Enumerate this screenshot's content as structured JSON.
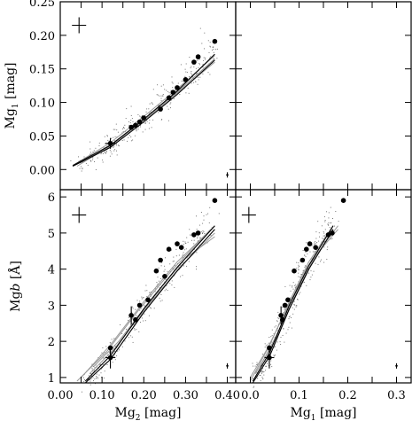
{
  "chart_data": [
    {
      "type": "scatter",
      "panel": "top-left",
      "xlabel": "",
      "ylabel": "Mg1 [mag]",
      "ylabel_main": "Mg",
      "ylabel_sub": "1",
      "ylabel_unit": " [mag]",
      "xlim": [
        0.0,
        0.42
      ],
      "ylim": [
        -0.03,
        0.25
      ],
      "yticks": [
        0.0,
        0.05,
        0.1,
        0.15,
        0.2,
        0.25
      ],
      "ytick_labels": [
        "0.00",
        "0.05",
        "0.10",
        "0.15",
        "0.20",
        "0.25"
      ],
      "xticks": [
        0.0,
        0.05,
        0.1,
        0.15,
        0.2,
        0.25,
        0.3,
        0.35,
        0.4
      ],
      "cross_marker": {
        "x": 0.045,
        "y": 0.215
      },
      "small_error": {
        "x": 0.4,
        "y": -0.008
      },
      "points": [
        {
          "x": 0.12,
          "y": 0.039,
          "ex": 0.012,
          "ey": 0.008
        },
        {
          "x": 0.17,
          "y": 0.063
        },
        {
          "x": 0.18,
          "y": 0.066
        },
        {
          "x": 0.19,
          "y": 0.071
        },
        {
          "x": 0.2,
          "y": 0.077
        },
        {
          "x": 0.24,
          "y": 0.09
        },
        {
          "x": 0.26,
          "y": 0.107
        },
        {
          "x": 0.27,
          "y": 0.115
        },
        {
          "x": 0.28,
          "y": 0.122
        },
        {
          "x": 0.3,
          "y": 0.134
        },
        {
          "x": 0.32,
          "y": 0.16
        },
        {
          "x": 0.33,
          "y": 0.168
        },
        {
          "x": 0.37,
          "y": 0.191
        }
      ],
      "models_black": [
        [
          [
            0.03,
            0.006
          ],
          [
            0.12,
            0.036
          ],
          [
            0.2,
            0.075
          ],
          [
            0.28,
            0.117
          ],
          [
            0.37,
            0.172
          ]
        ],
        [
          [
            0.03,
            0.005
          ],
          [
            0.12,
            0.033
          ],
          [
            0.2,
            0.071
          ],
          [
            0.28,
            0.112
          ],
          [
            0.37,
            0.163
          ]
        ]
      ],
      "models_grey": [
        [
          [
            0.03,
            0.006
          ],
          [
            0.12,
            0.04
          ],
          [
            0.2,
            0.079
          ],
          [
            0.28,
            0.12
          ],
          [
            0.37,
            0.17
          ]
        ],
        [
          [
            0.05,
            0.01
          ],
          [
            0.13,
            0.041
          ],
          [
            0.21,
            0.078
          ],
          [
            0.29,
            0.121
          ],
          [
            0.37,
            0.165
          ]
        ],
        [
          [
            0.04,
            0.005
          ],
          [
            0.12,
            0.035
          ],
          [
            0.2,
            0.073
          ],
          [
            0.28,
            0.114
          ],
          [
            0.37,
            0.16
          ]
        ],
        [
          [
            0.06,
            0.013
          ],
          [
            0.14,
            0.045
          ],
          [
            0.22,
            0.084
          ],
          [
            0.3,
            0.126
          ],
          [
            0.37,
            0.165
          ]
        ]
      ]
    },
    {
      "type": "scatter",
      "panel": "bottom-left",
      "xlabel": "Mg2 [mag]",
      "xlabel_main": "Mg",
      "xlabel_sub": "2",
      "xlabel_unit": " [mag]",
      "ylabel": "Mgb [Å]",
      "ylabel_main": "Mg",
      "ylabel_italic": "b",
      "ylabel_unit": " [Å]",
      "xlim": [
        0.0,
        0.42
      ],
      "ylim": [
        0.85,
        6.2
      ],
      "xticks": [
        0.0,
        0.05,
        0.1,
        0.15,
        0.2,
        0.25,
        0.3,
        0.35,
        0.4
      ],
      "xtick_labels": [
        "0.00",
        "0.10",
        "0.20",
        "0.30",
        "0.40"
      ],
      "xtick_label_values": [
        0.0,
        0.1,
        0.2,
        0.3,
        0.4
      ],
      "yticks": [
        1,
        2,
        3,
        4,
        5,
        6
      ],
      "ytick_labels": [
        "1",
        "2",
        "3",
        "4",
        "5",
        "6"
      ],
      "cross_marker": {
        "x": 0.045,
        "y": 5.5
      },
      "small_error": {
        "x": 0.4,
        "y": 1.32
      },
      "points": [
        {
          "x": 0.12,
          "y": 1.55,
          "ex": 0.012,
          "ey": 0.3
        },
        {
          "x": 0.12,
          "y": 1.82
        },
        {
          "x": 0.17,
          "y": 2.72,
          "ey": 0.25
        },
        {
          "x": 0.18,
          "y": 2.6
        },
        {
          "x": 0.19,
          "y": 3.0
        },
        {
          "x": 0.21,
          "y": 3.15
        },
        {
          "x": 0.23,
          "y": 3.95
        },
        {
          "x": 0.24,
          "y": 4.25
        },
        {
          "x": 0.25,
          "y": 3.8
        },
        {
          "x": 0.26,
          "y": 4.55
        },
        {
          "x": 0.28,
          "y": 4.7
        },
        {
          "x": 0.29,
          "y": 4.6
        },
        {
          "x": 0.32,
          "y": 4.95
        },
        {
          "x": 0.33,
          "y": 5.0
        },
        {
          "x": 0.37,
          "y": 5.9
        }
      ],
      "models_black": [
        [
          [
            0.06,
            0.9
          ],
          [
            0.12,
            1.6
          ],
          [
            0.2,
            2.9
          ],
          [
            0.28,
            4.05
          ],
          [
            0.37,
            5.2
          ]
        ],
        [
          [
            0.06,
            0.85
          ],
          [
            0.12,
            1.5
          ],
          [
            0.2,
            2.8
          ],
          [
            0.28,
            3.95
          ],
          [
            0.37,
            5.1
          ]
        ]
      ],
      "models_grey": [
        [
          [
            0.05,
            1.0
          ],
          [
            0.12,
            1.9
          ],
          [
            0.2,
            3.1
          ],
          [
            0.28,
            4.2
          ],
          [
            0.37,
            5.2
          ]
        ],
        [
          [
            0.07,
            1.1
          ],
          [
            0.13,
            1.8
          ],
          [
            0.21,
            3.0
          ],
          [
            0.29,
            4.1
          ],
          [
            0.37,
            5.0
          ]
        ],
        [
          [
            0.04,
            0.9
          ],
          [
            0.11,
            1.7
          ],
          [
            0.19,
            2.9
          ],
          [
            0.27,
            4.0
          ],
          [
            0.36,
            5.1
          ]
        ],
        [
          [
            0.08,
            1.3
          ],
          [
            0.14,
            2.0
          ],
          [
            0.22,
            3.2
          ],
          [
            0.3,
            4.3
          ],
          [
            0.37,
            4.9
          ]
        ]
      ]
    },
    {
      "type": "scatter",
      "panel": "bottom-right",
      "xlabel": "Mg1 [mag]",
      "xlabel_main": "Mg",
      "xlabel_sub": "1",
      "xlabel_unit": " [mag]",
      "ylabel": "",
      "xlim": [
        -0.03,
        0.33
      ],
      "ylim": [
        0.85,
        6.2
      ],
      "xticks": [
        0.0,
        0.05,
        0.1,
        0.15,
        0.2,
        0.25,
        0.3
      ],
      "xtick_labels": [
        "0.0",
        "0.1",
        "0.2",
        "0.3"
      ],
      "xtick_label_values": [
        0.0,
        0.1,
        0.2,
        0.3
      ],
      "yticks": [
        1,
        2,
        3,
        4,
        5,
        6
      ],
      "cross_marker": {
        "x": -0.003,
        "y": 5.5
      },
      "small_error": {
        "x": 0.3,
        "y": 1.32
      },
      "points": [
        {
          "x": 0.039,
          "y": 1.55,
          "ex": 0.01,
          "ey": 0.3
        },
        {
          "x": 0.039,
          "y": 1.82
        },
        {
          "x": 0.063,
          "y": 2.72,
          "ey": 0.25
        },
        {
          "x": 0.066,
          "y": 2.6
        },
        {
          "x": 0.071,
          "y": 3.0
        },
        {
          "x": 0.077,
          "y": 3.15
        },
        {
          "x": 0.09,
          "y": 3.95
        },
        {
          "x": 0.107,
          "y": 4.25
        },
        {
          "x": 0.115,
          "y": 4.55
        },
        {
          "x": 0.122,
          "y": 4.7
        },
        {
          "x": 0.134,
          "y": 4.6
        },
        {
          "x": 0.16,
          "y": 4.95
        },
        {
          "x": 0.168,
          "y": 5.0
        },
        {
          "x": 0.191,
          "y": 5.9
        }
      ],
      "models_black": [
        [
          [
            0.005,
            0.9
          ],
          [
            0.04,
            1.7
          ],
          [
            0.08,
            3.0
          ],
          [
            0.12,
            4.1
          ],
          [
            0.17,
            5.2
          ]
        ],
        [
          [
            0.005,
            0.85
          ],
          [
            0.04,
            1.6
          ],
          [
            0.08,
            2.9
          ],
          [
            0.12,
            4.0
          ],
          [
            0.17,
            5.1
          ]
        ]
      ],
      "models_grey": [
        [
          [
            0.0,
            0.9
          ],
          [
            0.04,
            1.9
          ],
          [
            0.08,
            3.1
          ],
          [
            0.12,
            4.2
          ],
          [
            0.17,
            5.2
          ]
        ],
        [
          [
            0.01,
            1.1
          ],
          [
            0.05,
            2.0
          ],
          [
            0.09,
            3.2
          ],
          [
            0.13,
            4.3
          ],
          [
            0.18,
            5.2
          ]
        ],
        [
          [
            0.0,
            1.0
          ],
          [
            0.035,
            1.8
          ],
          [
            0.075,
            2.9
          ],
          [
            0.115,
            4.0
          ],
          [
            0.16,
            5.0
          ]
        ],
        [
          [
            0.02,
            1.3
          ],
          [
            0.055,
            2.2
          ],
          [
            0.095,
            3.3
          ],
          [
            0.135,
            4.4
          ],
          [
            0.18,
            5.1
          ]
        ]
      ]
    }
  ]
}
